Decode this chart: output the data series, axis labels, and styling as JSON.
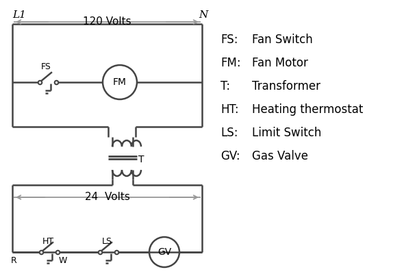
{
  "bg_color": "#ffffff",
  "line_color": "#444444",
  "gray_color": "#999999",
  "text_color": "#000000",
  "legend": [
    [
      "FS:",
      "Fan Switch"
    ],
    [
      "FM:",
      "Fan Motor"
    ],
    [
      "T:",
      "Transformer"
    ],
    [
      "HT:",
      "Heating thermostat"
    ],
    [
      "LS:",
      "Limit Switch"
    ],
    [
      "GV:",
      "Gas Valve"
    ]
  ],
  "L1_label": "L1",
  "N_label": "N",
  "volts120_label": "120 Volts",
  "volts24_label": "24  Volts",
  "T_label": "T",
  "R_label": "R",
  "W_label": "W",
  "HT_label": "HT",
  "LS_label": "LS",
  "FS_label": "FS",
  "FM_label": "FM",
  "GV_label": "GV",
  "figw": 5.9,
  "figh": 4.0,
  "dpi": 100
}
